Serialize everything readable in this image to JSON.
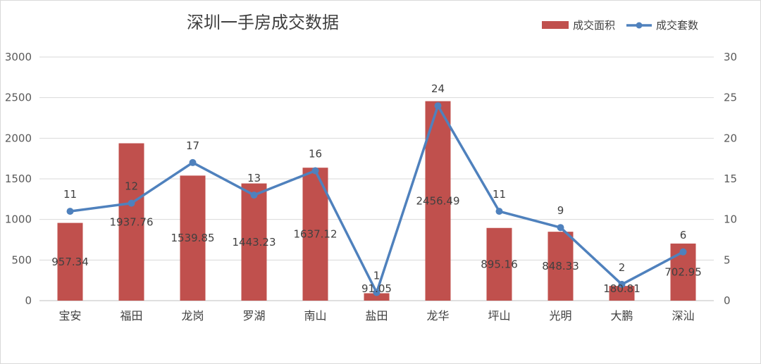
{
  "chart_data": {
    "type": "bar+line",
    "title": "深圳一手房成交数据",
    "categories": [
      "宝安",
      "福田",
      "龙岗",
      "罗湖",
      "南山",
      "盐田",
      "龙华",
      "坪山",
      "光明",
      "大鹏",
      "深汕"
    ],
    "series": [
      {
        "name": "成交面积",
        "type": "bar",
        "axis": "left",
        "color": "#c0504d",
        "values": [
          957.34,
          1937.76,
          1539.85,
          1443.23,
          1637.12,
          91.05,
          2456.49,
          895.16,
          848.33,
          180.81,
          702.95
        ],
        "labels": [
          "957.34",
          "1937.76",
          "1539.85",
          "1443.23",
          "1637.12",
          "91.05",
          "2456.49",
          "895.16",
          "848.33",
          "180.81",
          "702.95"
        ]
      },
      {
        "name": "成交套数",
        "type": "line",
        "axis": "right",
        "color": "#4f81bd",
        "values": [
          11,
          12,
          17,
          13,
          16,
          1,
          24,
          11,
          9,
          2,
          6
        ],
        "labels": [
          "11",
          "12",
          "17",
          "13",
          "16",
          "1",
          "24",
          "11",
          "9",
          "2",
          "6"
        ]
      }
    ],
    "y_left": {
      "min": 0,
      "max": 3000,
      "ticks": [
        "0",
        "500",
        "1000",
        "1500",
        "2000",
        "2500",
        "3000"
      ]
    },
    "y_right": {
      "min": 0,
      "max": 30,
      "ticks": [
        "0",
        "5",
        "10",
        "15",
        "20",
        "25",
        "30"
      ]
    },
    "grid": true,
    "legend": "top-right"
  }
}
